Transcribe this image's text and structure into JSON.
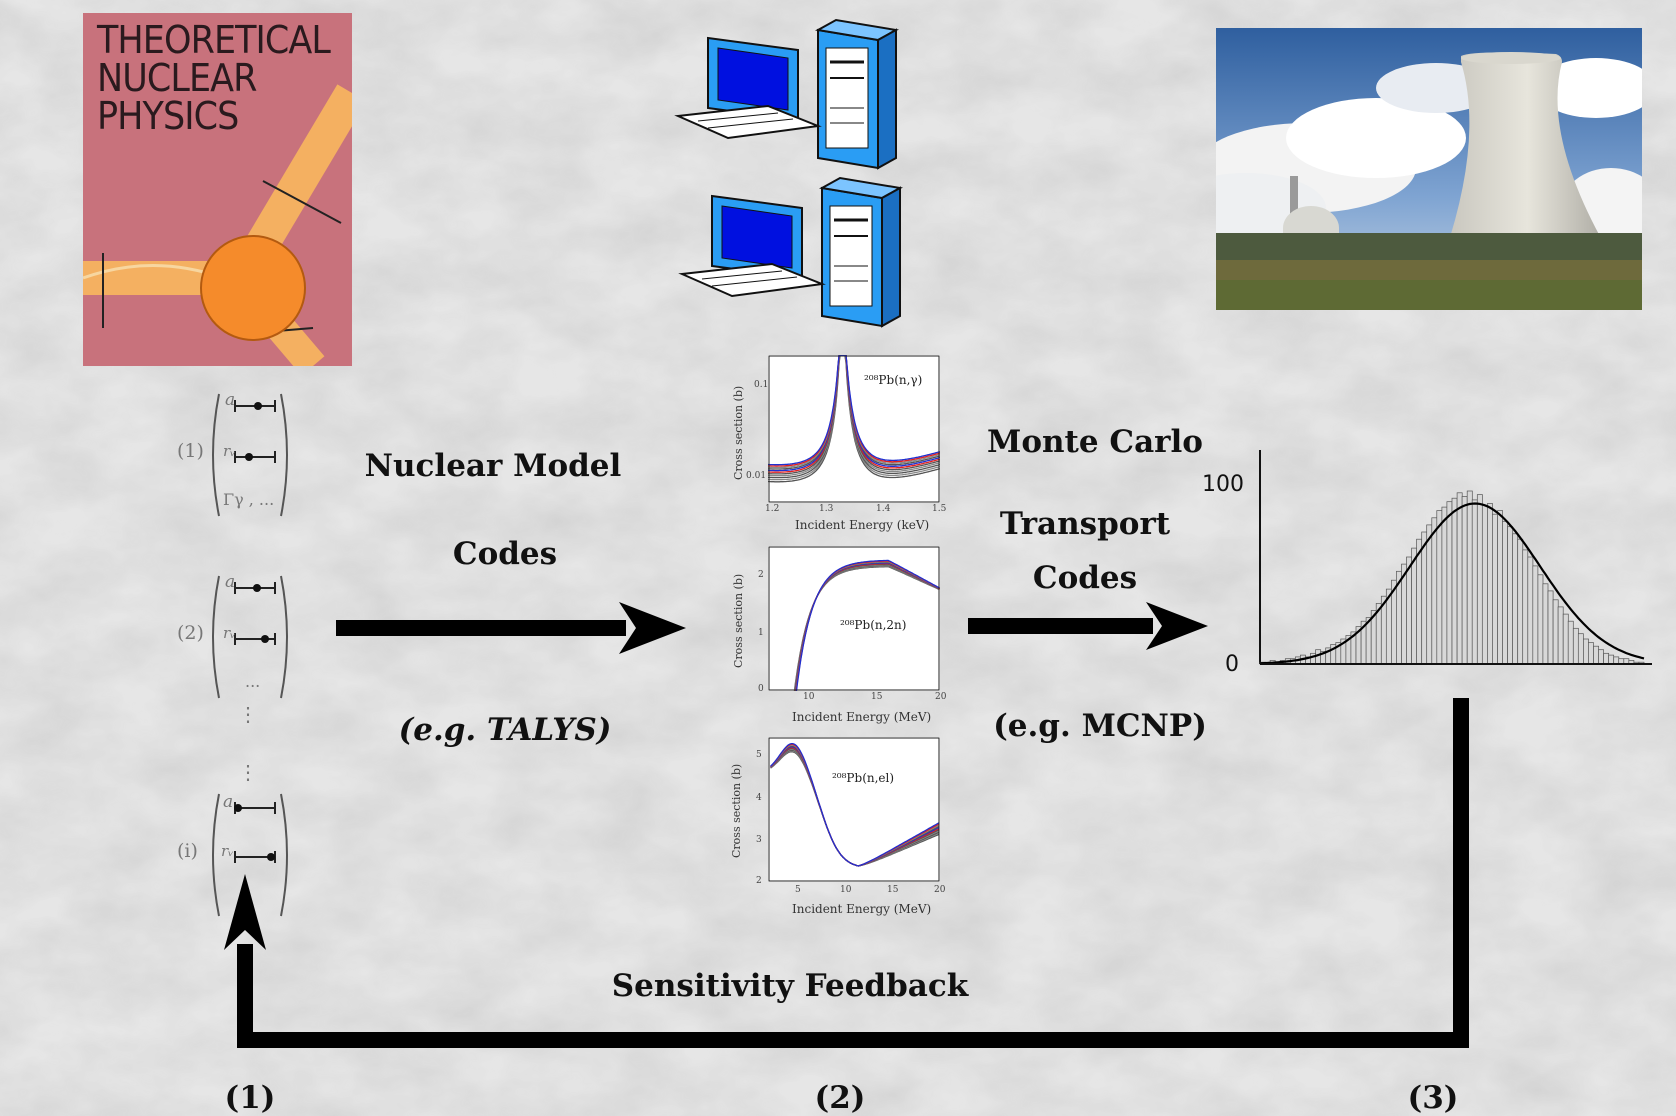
{
  "book": {
    "title_lines": [
      "THEORETICAL",
      "NUCLEAR",
      "PHYSICS"
    ]
  },
  "parameter_sets": [
    {
      "index": "(1)",
      "rows": [
        "a",
        "rᵥ",
        "Γγ , ..."
      ]
    },
    {
      "index": "(2)",
      "rows": [
        "a",
        "rᵥ",
        "..."
      ]
    },
    {
      "index": "(i)",
      "rows": [
        "a",
        "rᵥ",
        "..."
      ]
    }
  ],
  "labels": {
    "nuclear_model": "Nuclear Model",
    "codes_left": "Codes",
    "talys": "(e.g. TALYS)",
    "monte_carlo": "Monte Carlo",
    "transport": "Transport",
    "codes_right": "Codes",
    "mcnp": "(e.g. MCNP)",
    "feedback": "Sensitivity Feedback",
    "stage_1": "(1)",
    "stage_2": "(2)",
    "stage_3": "(3)"
  },
  "icons": [
    "computer-icon",
    "computer-icon"
  ],
  "chart_data": [
    {
      "type": "line",
      "title": "²⁰⁸Pb(n,γ)",
      "xlabel": "Incident Energy (keV)",
      "ylabel": "Cross section (b)",
      "xticks": [
        "1.2",
        "1.3",
        "1.4",
        "1.5"
      ],
      "yticks": [
        "0.1",
        "0.01"
      ],
      "xlim": [
        1.2,
        1.5
      ],
      "log_y": true,
      "ylim": [
        0.004,
        0.25
      ],
      "resonance_peak_x": 1.33,
      "series_colors": [
        "#e02020",
        "#2030d0",
        "#555555",
        "#888888"
      ]
    },
    {
      "type": "line",
      "title": "²⁰⁸Pb(n,2n)",
      "xlabel": "Incident Energy (MeV)",
      "ylabel": "Cross section (b)",
      "xticks": [
        "10",
        "15",
        "20"
      ],
      "yticks": [
        "2",
        "1",
        "0"
      ],
      "xlim": [
        5,
        20
      ],
      "ylim": [
        0,
        2.5
      ],
      "series_colors": [
        "#e02020",
        "#2030d0",
        "#555555",
        "#888888"
      ]
    },
    {
      "type": "line",
      "title": "²⁰⁸Pb(n,el)",
      "xlabel": "Incident Energy (MeV)",
      "ylabel": "Cross section (b)",
      "xticks": [
        "5",
        "10",
        "15",
        "20"
      ],
      "yticks": [
        "5",
        "4",
        "3",
        "2"
      ],
      "xlim": [
        0,
        20
      ],
      "ylim": [
        2,
        5.2
      ],
      "series_colors": [
        "#e02020",
        "#2030d0",
        "#555555",
        "#888888"
      ]
    },
    {
      "type": "bar",
      "title": "",
      "yticks": [
        "100",
        "0"
      ],
      "ylim": [
        0,
        120
      ],
      "values": [
        1,
        1,
        2,
        1,
        2,
        3,
        3,
        4,
        5,
        4,
        6,
        8,
        7,
        9,
        11,
        12,
        14,
        16,
        18,
        21,
        24,
        26,
        30,
        34,
        38,
        42,
        47,
        52,
        56,
        60,
        65,
        70,
        74,
        78,
        82,
        86,
        88,
        91,
        93,
        96,
        94,
        97,
        92,
        95,
        89,
        90,
        84,
        86,
        80,
        77,
        73,
        70,
        64,
        60,
        55,
        50,
        45,
        41,
        36,
        32,
        28,
        24,
        20,
        17,
        14,
        12,
        10,
        8,
        6,
        5,
        4,
        3,
        3,
        2,
        1,
        1
      ],
      "fit_curve": "gaussian"
    }
  ]
}
